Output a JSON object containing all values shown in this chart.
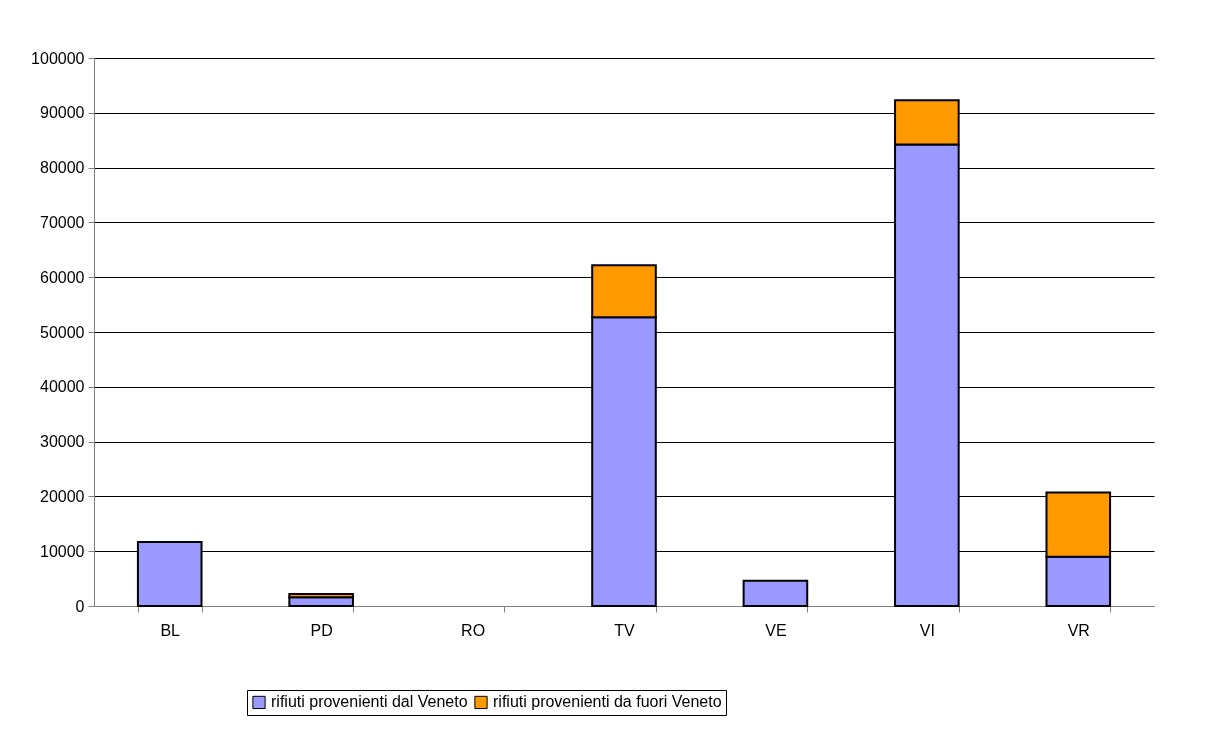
{
  "chart_data": {
    "type": "bar",
    "stacked": true,
    "categories": [
      "BL",
      "PD",
      "RO",
      "TV",
      "VE",
      "VI",
      "VR"
    ],
    "series": [
      {
        "name": "rifiuti provenienti dal Veneto",
        "color": "#9999ff",
        "values": [
          11700,
          1600,
          null,
          52700,
          4600,
          84200,
          9000
        ]
      },
      {
        "name": "rifiuti provenienti da fuori Veneto",
        "color": "#ff9900",
        "values": [
          null,
          600,
          null,
          9500,
          null,
          8100,
          11700
        ]
      }
    ],
    "ylim": [
      0,
      100000
    ],
    "yticks": [
      0,
      10000,
      20000,
      30000,
      40000,
      50000,
      60000,
      70000,
      80000,
      90000,
      100000
    ],
    "grid": "y",
    "legend": "bottom"
  }
}
